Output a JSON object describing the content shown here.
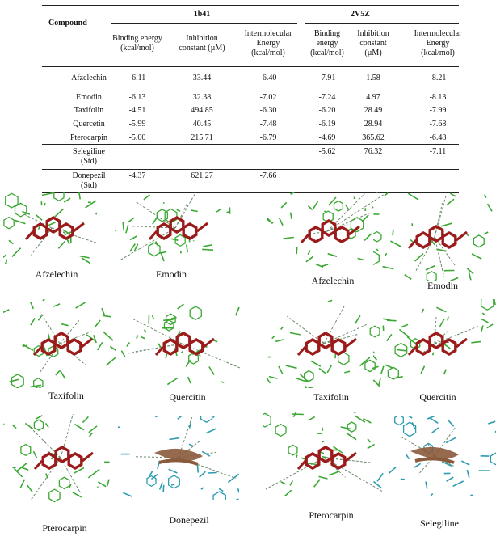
{
  "table": {
    "compound_header": "Compound",
    "group1": "1b41",
    "group2": "2V5Z",
    "col_headers": [
      "Binding energy\n(kcal/mol)",
      "Inhibition\nconstant (µM)",
      "Intermolecular\nEnergy\n(kcal/mol)",
      "Binding\nenergy\n(kcal/mol)",
      "Inhibition\nconstant\n(µM)",
      "Intermolecular\nEnergy\n(kcal/mol)"
    ],
    "rows": [
      {
        "name": "Afzelechin",
        "cells": [
          "-6.11",
          "33.44",
          "-6.40",
          "-7.91",
          "1.58",
          "-8.21"
        ]
      },
      {
        "name": "Emodin",
        "cells": [
          "-6.13",
          "32.38",
          "-7.02",
          "-7.24",
          "4.97",
          "-8.13"
        ]
      },
      {
        "name": "Taxifolin",
        "cells": [
          "-4.51",
          "494.85",
          "-6.30",
          "-6.20",
          "28.49",
          "-7.99"
        ]
      },
      {
        "name": "Quercetin",
        "cells": [
          "-5.99",
          "40.45",
          "-7.48",
          "-6.19",
          "28.94",
          "-7.68"
        ]
      },
      {
        "name": "Pterocarpin",
        "cells": [
          "-5.00",
          "215.71",
          "-6.79",
          "-4.69",
          "365.62",
          "-6.48"
        ]
      },
      {
        "name": "Selegiline\n(Std)",
        "cells": [
          "",
          "",
          "",
          "-5.62",
          "76.32",
          "-7.11"
        ]
      },
      {
        "name": "Donepezil\n(Std)",
        "cells": [
          "-4.37",
          "621.27",
          "-7.66",
          "",
          "",
          ""
        ]
      }
    ]
  },
  "figures": [
    {
      "caption": "Afzelechin",
      "style": "green-red"
    },
    {
      "caption": "Emodin",
      "style": "green-red"
    },
    {
      "caption": "Afzelechin",
      "style": "green-red"
    },
    {
      "caption": "Emodin",
      "style": "green-red"
    },
    {
      "caption": "Taxifolin",
      "style": "green-red"
    },
    {
      "caption": "Quercitin",
      "style": "green-red"
    },
    {
      "caption": "Taxifolin",
      "style": "green-red"
    },
    {
      "caption": "Quercitin",
      "style": "green-red"
    },
    {
      "caption": "Pterocarpin",
      "style": "green-red"
    },
    {
      "caption": "Donepezil",
      "style": "cyan-brown"
    },
    {
      "caption": "Pterocarpin",
      "style": "green-red"
    },
    {
      "caption": "Selegiline",
      "style": "cyan-brown"
    }
  ],
  "colors": {
    "residue_green": "#3aa832",
    "ligand_red": "#9b1b1b",
    "residue_cyan": "#2b9bb0",
    "ligand_brown": "#8a5a3c",
    "hbond_dash": "#6a8a6a"
  }
}
